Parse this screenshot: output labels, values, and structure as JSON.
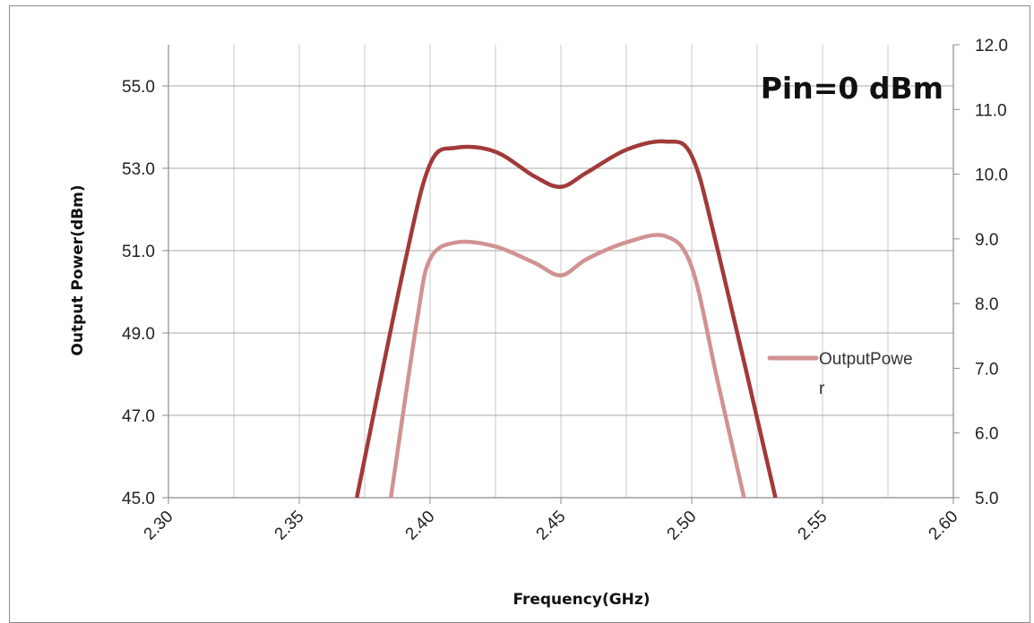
{
  "chart_data": {
    "type": "line",
    "title": "",
    "annotation": "Pin=0 dBm",
    "xlabel": "Frequency(GHz)",
    "ylabel": "Output Power(dBm)",
    "y2label": "",
    "xlim": [
      2.3,
      2.6
    ],
    "ylim": [
      45.0,
      56.0
    ],
    "y2lim": [
      5.0,
      12.0
    ],
    "x_ticks": [
      "2.30",
      "2.35",
      "2.40",
      "2.45",
      "2.50",
      "2.55",
      "2.60"
    ],
    "x_tick_values": [
      2.3,
      2.35,
      2.4,
      2.45,
      2.5,
      2.55,
      2.6
    ],
    "x_minor_gridlines": [
      2.325,
      2.375,
      2.425,
      2.475,
      2.525,
      2.575
    ],
    "y_ticks": [
      "45.0",
      "47.0",
      "49.0",
      "51.0",
      "53.0",
      "55.0"
    ],
    "y_tick_values": [
      45,
      47,
      49,
      51,
      53,
      55
    ],
    "y2_ticks": [
      "5.0",
      "6.0",
      "7.0",
      "8.0",
      "9.0",
      "10.0",
      "11.0",
      "12.0"
    ],
    "y2_tick_values": [
      5,
      6,
      7,
      8,
      9,
      10,
      11,
      12
    ],
    "grid": true,
    "legend": {
      "position": "right",
      "entries": [
        "OutputPowe",
        "r"
      ]
    },
    "series": [
      {
        "axis": "left",
        "color": "#a13a3a",
        "x": [
          2.372,
          2.39,
          2.4,
          2.41,
          2.425,
          2.44,
          2.45,
          2.46,
          2.475,
          2.49,
          2.5,
          2.51,
          2.532
        ],
        "y": [
          45.0,
          50.6,
          53.1,
          53.5,
          53.4,
          52.8,
          52.55,
          52.9,
          53.45,
          53.65,
          53.3,
          51.0,
          45.0
        ]
      },
      {
        "axis": "left",
        "color": "#d19292",
        "x": [
          2.385,
          2.395,
          2.4,
          2.41,
          2.425,
          2.44,
          2.45,
          2.46,
          2.475,
          2.49,
          2.5,
          2.51,
          2.52
        ],
        "y": [
          45.0,
          49.3,
          50.8,
          51.2,
          51.1,
          50.7,
          50.4,
          50.8,
          51.2,
          51.35,
          50.6,
          47.8,
          45.0
        ]
      }
    ]
  }
}
